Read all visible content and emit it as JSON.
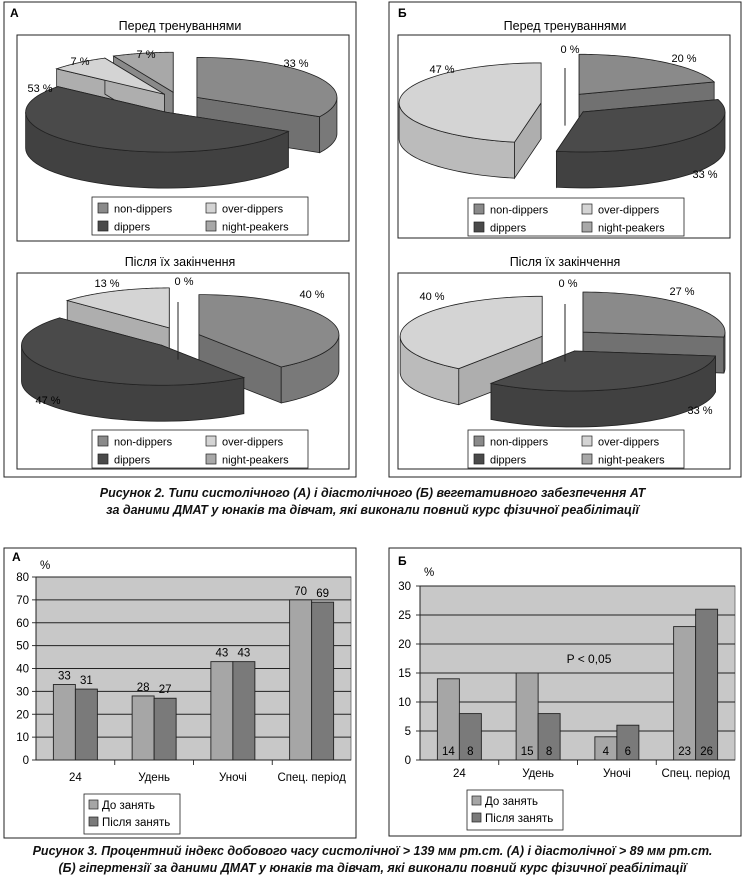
{
  "figure2": {
    "caption_line1": "Рисунок 2. Типи систолічного (А) і діастолічного (Б) вегетативного забезпечення АТ",
    "caption_line2": "за даними ДМАТ у юнаків та дівчат, які виконали повний курс фізичної реабілітації",
    "panel_a_label": "А",
    "panel_b_label": "Б",
    "legend": [
      "non-dippers",
      "over-dippers",
      "dippers",
      "night-peakers"
    ]
  },
  "figure3": {
    "caption_line1": "Рисунок 3. Процентний індекс добового часу систолічної > 139 мм рт.ст. (А) і діастолічної > 89 мм рт.ст.",
    "caption_line2": "(Б) гіпертензії за даними ДМАТ у юнаків та дівчат, які виконали повний курс фізичної реабілітації",
    "panel_a_label": "А",
    "panel_b_label": "Б"
  },
  "colors": {
    "non_dippers": "#8a8a8a",
    "over_dippers": "#d4d4d4",
    "dippers": "#4a4a4a",
    "night_peakers": "#a8a8a8",
    "plot_bg": "#c8c8c8",
    "bar_before": "#a6a6a6",
    "bar_after": "#7a7a7a"
  },
  "chart_data": [
    {
      "type": "pie",
      "panel": "А",
      "title": "Перед тренуваннями",
      "labels": [
        "non-dippers",
        "dippers",
        "over-dippers",
        "night-peakers"
      ],
      "values": [
        33,
        53,
        7,
        7
      ],
      "value_labels": [
        "33 %",
        "53 %",
        "7 %",
        "7 %"
      ]
    },
    {
      "type": "pie",
      "panel": "Б",
      "title": "Перед тренуваннями",
      "labels": [
        "non-dippers",
        "dippers",
        "over-dippers",
        "night-peakers"
      ],
      "values": [
        20,
        33,
        47,
        0
      ],
      "value_labels": [
        "20 %",
        "33 %",
        "47 %",
        "0 %"
      ]
    },
    {
      "type": "pie",
      "panel": "А",
      "title": "Після їх закінчення",
      "labels": [
        "non-dippers",
        "dippers",
        "over-dippers",
        "night-peakers"
      ],
      "values": [
        40,
        47,
        13,
        0
      ],
      "value_labels": [
        "40 %",
        "47 %",
        "13 %",
        "0 %"
      ]
    },
    {
      "type": "pie",
      "panel": "Б",
      "title": "Після їх закінчення",
      "labels": [
        "non-dippers",
        "dippers",
        "over-dippers",
        "night-peakers"
      ],
      "values": [
        27,
        33,
        40,
        0
      ],
      "value_labels": [
        "27 %",
        "33 %",
        "40 %",
        "0 %"
      ]
    },
    {
      "type": "bar",
      "panel": "А",
      "title": "",
      "ylabel": "%",
      "ylim": [
        0,
        80
      ],
      "yticks": [
        0,
        10,
        20,
        30,
        40,
        50,
        60,
        70,
        80
      ],
      "categories": [
        "24",
        "Удень",
        "Уночі",
        "Спец. період"
      ],
      "series": [
        {
          "name": "До занять",
          "values": [
            33,
            28,
            43,
            70
          ]
        },
        {
          "name": "Після занять",
          "values": [
            31,
            27,
            43,
            69
          ]
        }
      ],
      "grid": true,
      "legend": "bottom-left"
    },
    {
      "type": "bar",
      "panel": "Б",
      "title": "",
      "ylabel": "%",
      "ylim": [
        0,
        30
      ],
      "yticks": [
        0,
        5,
        10,
        15,
        20,
        25,
        30
      ],
      "categories": [
        "24",
        "Удень",
        "Уночі",
        "Спец. період"
      ],
      "series": [
        {
          "name": "До занять",
          "values": [
            14,
            15,
            4,
            23
          ]
        },
        {
          "name": "Після занять",
          "values": [
            8,
            8,
            6,
            26
          ]
        }
      ],
      "annotation": "P < 0,05",
      "grid": true,
      "legend": "bottom-left"
    }
  ]
}
